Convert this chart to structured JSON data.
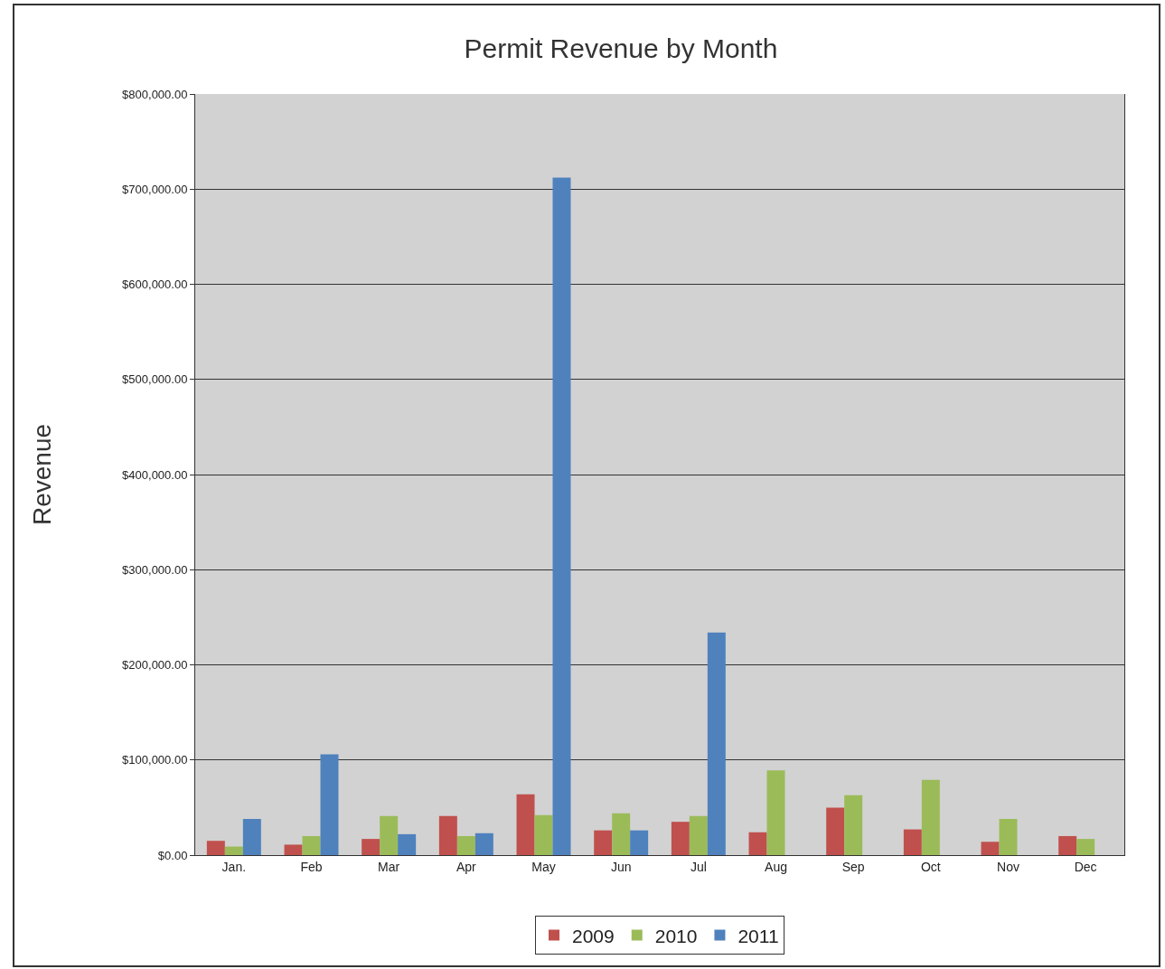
{
  "chart_data": {
    "type": "bar",
    "title": "Permit Revenue by Month",
    "ylabel": "Revenue",
    "categories": [
      "Jan.",
      "Feb",
      "Mar",
      "Apr",
      "May",
      "Jun",
      "Jul",
      "Aug",
      "Sep",
      "Oct",
      "Nov",
      "Dec"
    ],
    "series": [
      {
        "name": "2009",
        "color": "#c0504d",
        "values": [
          15000,
          11000,
          17000,
          41000,
          64000,
          26000,
          35000,
          24000,
          50000,
          27000,
          14000,
          20000
        ]
      },
      {
        "name": "2010",
        "color": "#9bbb59",
        "values": [
          9000,
          20000,
          41000,
          20000,
          42000,
          44000,
          41000,
          89000,
          63000,
          79000,
          38000,
          17000
        ]
      },
      {
        "name": "2011",
        "color": "#4f81bd",
        "values": [
          38000,
          106000,
          22000,
          23000,
          712000,
          26000,
          234000,
          null,
          null,
          null,
          null,
          null
        ]
      }
    ],
    "ylim": [
      0,
      800000
    ],
    "yticks": [
      {
        "value": 0,
        "label": "$0.00"
      },
      {
        "value": 100000,
        "label": "$100,000.00"
      },
      {
        "value": 200000,
        "label": "$200,000.00"
      },
      {
        "value": 300000,
        "label": "$300,000.00"
      },
      {
        "value": 400000,
        "label": "$400,000.00"
      },
      {
        "value": 500000,
        "label": "$500,000.00"
      },
      {
        "value": 600000,
        "label": "$600,000.00"
      },
      {
        "value": 700000,
        "label": "$700,000.00"
      },
      {
        "value": 800000,
        "label": "$800,000.00"
      }
    ],
    "grid": "y",
    "legend": "bottom"
  }
}
